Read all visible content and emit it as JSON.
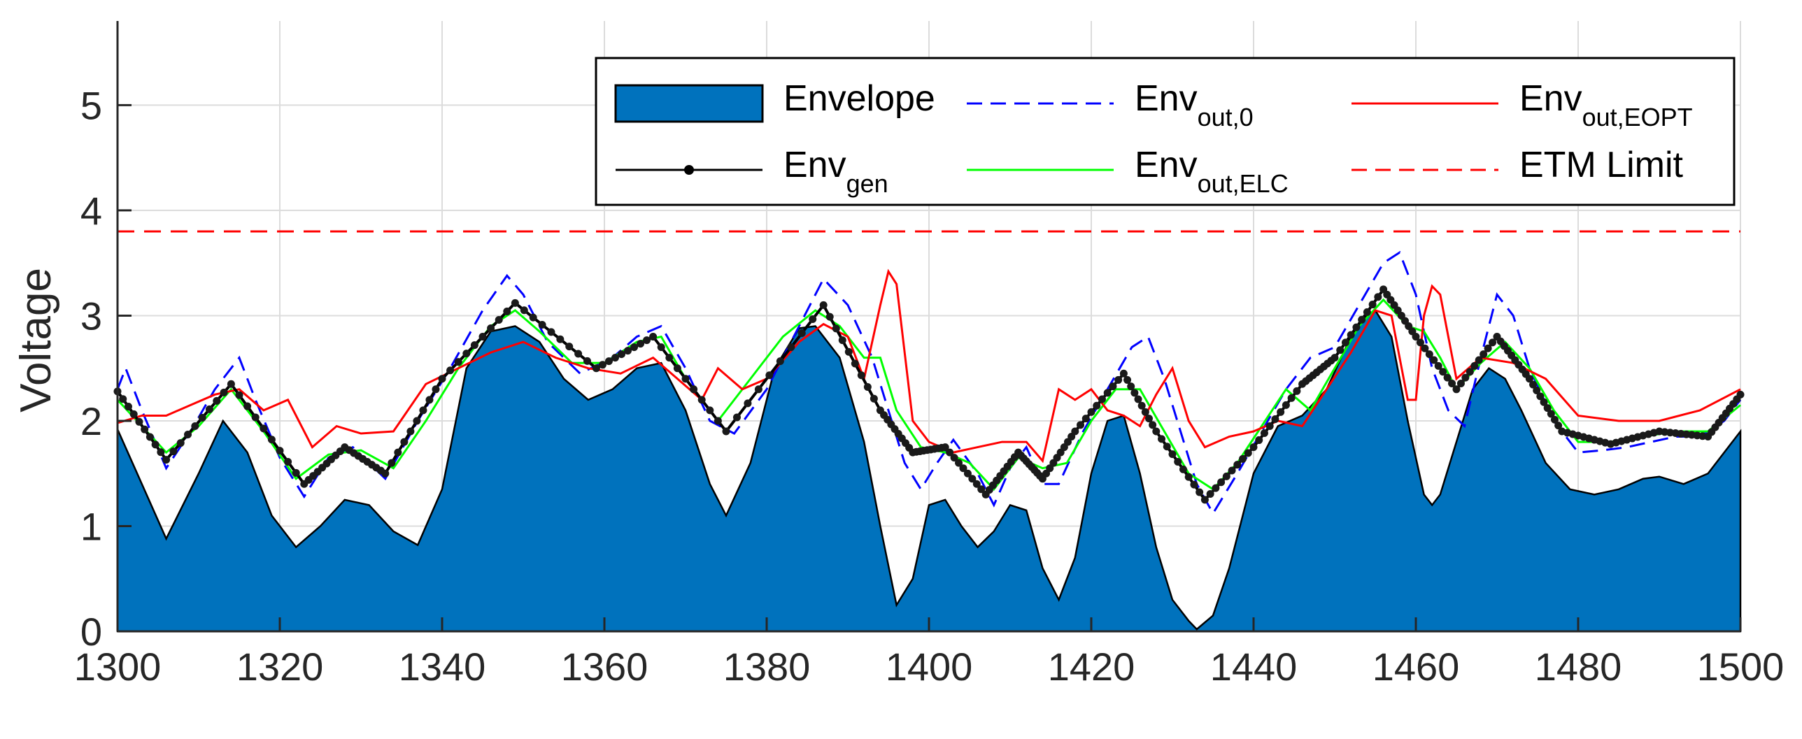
{
  "chart_data": {
    "type": "area",
    "xlabel": "",
    "ylabel": "Voltage",
    "xlim": [
      1300,
      1500
    ],
    "ylim": [
      0,
      5.8
    ],
    "xticks": [
      1300,
      1320,
      1340,
      1360,
      1380,
      1400,
      1420,
      1440,
      1460,
      1480,
      1500
    ],
    "yticks": [
      0,
      1,
      2,
      3,
      4,
      5
    ],
    "grid": true,
    "legend_placement": "top-right",
    "colors": {
      "envelope": "#0072BD",
      "env_gen": "#000000",
      "env_out_0": "#0000FF",
      "env_out_elc": "#00FF00",
      "env_out_eopt": "#FF0000",
      "etm_limit": "#FF0000"
    },
    "legend": [
      {
        "key": "envelope",
        "base": "Envelope",
        "sub": "",
        "style": "filled-box"
      },
      {
        "key": "env_out_0",
        "base": "Env",
        "sub": "out,0",
        "style": "dashed-line"
      },
      {
        "key": "env_out_eopt",
        "base": "Env",
        "sub": "out,EOPT",
        "style": "solid-line"
      },
      {
        "key": "env_gen",
        "base": "Env",
        "sub": "gen",
        "style": "line-dot"
      },
      {
        "key": "env_out_elc",
        "base": "Env",
        "sub": "out,ELC",
        "style": "solid-line"
      },
      {
        "key": "etm_limit",
        "base": "ETM Limit",
        "sub": "",
        "style": "dashed-line"
      }
    ],
    "series": [
      {
        "key": "envelope",
        "x": [
          1300,
          1303,
          1306,
          1310,
          1313,
          1316,
          1319,
          1322,
          1325,
          1328,
          1331,
          1334,
          1337,
          1340,
          1343,
          1346,
          1349,
          1352,
          1355,
          1358,
          1361,
          1364,
          1367,
          1370,
          1373,
          1375,
          1378,
          1381,
          1384,
          1386,
          1389,
          1392,
          1394,
          1396,
          1398,
          1400,
          1402,
          1404,
          1406,
          1408,
          1410,
          1412,
          1414,
          1416,
          1418,
          1420,
          1422,
          1424,
          1426,
          1428,
          1430,
          1432,
          1433,
          1435,
          1437,
          1440,
          1443,
          1446,
          1449,
          1452,
          1454,
          1455,
          1457,
          1459,
          1461,
          1462,
          1463,
          1465,
          1467,
          1469,
          1471,
          1473,
          1476,
          1479,
          1482,
          1485,
          1488,
          1490,
          1493,
          1496,
          1500
        ],
        "y": [
          1.92,
          1.4,
          0.88,
          1.5,
          2.0,
          1.7,
          1.1,
          0.8,
          1.0,
          1.25,
          1.2,
          0.95,
          0.82,
          1.35,
          2.5,
          2.85,
          2.9,
          2.75,
          2.4,
          2.2,
          2.3,
          2.5,
          2.55,
          2.1,
          1.4,
          1.1,
          1.6,
          2.5,
          2.88,
          2.9,
          2.6,
          1.8,
          1.0,
          0.25,
          0.5,
          1.2,
          1.25,
          1.0,
          0.8,
          0.95,
          1.2,
          1.15,
          0.6,
          0.3,
          0.7,
          1.5,
          2.0,
          2.05,
          1.5,
          0.8,
          0.3,
          0.1,
          0.02,
          0.15,
          0.6,
          1.5,
          1.95,
          2.05,
          2.3,
          2.8,
          3.0,
          3.05,
          2.8,
          2.0,
          1.3,
          1.2,
          1.3,
          1.8,
          2.3,
          2.5,
          2.4,
          2.1,
          1.6,
          1.35,
          1.3,
          1.35,
          1.45,
          1.47,
          1.4,
          1.5,
          1.9
        ]
      },
      {
        "key": "env_gen",
        "x": [
          1300,
          1306,
          1314,
          1323,
          1328,
          1333,
          1340,
          1349,
          1359,
          1366,
          1375,
          1387,
          1394,
          1398,
          1402,
          1407,
          1411,
          1414,
          1418,
          1424,
          1428,
          1434,
          1440,
          1446,
          1450,
          1456,
          1460,
          1465,
          1470,
          1474,
          1478,
          1484,
          1490,
          1496,
          1500
        ],
        "y": [
          2.28,
          1.63,
          2.35,
          1.4,
          1.75,
          1.5,
          2.4,
          3.12,
          2.5,
          2.8,
          1.9,
          3.1,
          2.1,
          1.7,
          1.75,
          1.3,
          1.7,
          1.45,
          1.9,
          2.45,
          1.9,
          1.25,
          1.75,
          2.35,
          2.6,
          3.25,
          2.8,
          2.3,
          2.8,
          2.4,
          1.9,
          1.78,
          1.9,
          1.85,
          2.25
        ]
      },
      {
        "key": "env_out_0",
        "x": [
          1300,
          1301,
          1303,
          1306,
          1309,
          1312,
          1315,
          1317,
          1320,
          1323,
          1326,
          1329,
          1333,
          1337,
          1341,
          1345,
          1348,
          1350,
          1353,
          1357,
          1361,
          1364,
          1367,
          1370,
          1373,
          1376,
          1380,
          1384,
          1387,
          1390,
          1393,
          1395,
          1397,
          1399,
          1401,
          1403,
          1406,
          1408,
          1410,
          1412,
          1414,
          1416,
          1419,
          1422,
          1425,
          1427,
          1429,
          1431,
          1433,
          1435,
          1438,
          1441,
          1444,
          1447,
          1450,
          1453,
          1456,
          1458,
          1460,
          1462,
          1464,
          1466,
          1468,
          1470,
          1472,
          1474,
          1477,
          1480,
          1483,
          1486,
          1489,
          1492,
          1495,
          1498,
          1500
        ],
        "y": [
          2.3,
          2.5,
          2.1,
          1.55,
          1.9,
          2.3,
          2.6,
          2.2,
          1.65,
          1.28,
          1.65,
          1.75,
          1.45,
          2.0,
          2.5,
          3.05,
          3.38,
          3.2,
          2.75,
          2.45,
          2.6,
          2.8,
          2.9,
          2.5,
          2.0,
          1.88,
          2.3,
          2.9,
          3.35,
          3.1,
          2.6,
          2.1,
          1.6,
          1.35,
          1.6,
          1.82,
          1.5,
          1.2,
          1.55,
          1.75,
          1.4,
          1.4,
          1.9,
          2.3,
          2.7,
          2.8,
          2.4,
          1.9,
          1.4,
          1.12,
          1.5,
          1.9,
          2.3,
          2.6,
          2.7,
          3.1,
          3.5,
          3.6,
          3.2,
          2.5,
          2.1,
          1.95,
          2.6,
          3.2,
          3.0,
          2.5,
          2.0,
          1.7,
          1.72,
          1.75,
          1.8,
          1.85,
          1.85,
          2.0,
          2.2
        ]
      },
      {
        "key": "env_out_elc",
        "x": [
          1300,
          1303,
          1306,
          1310,
          1314,
          1318,
          1322,
          1326,
          1330,
          1334,
          1338,
          1342,
          1346,
          1349,
          1352,
          1356,
          1360,
          1364,
          1367,
          1370,
          1374,
          1378,
          1382,
          1386,
          1389,
          1392,
          1394,
          1396,
          1399,
          1402,
          1405,
          1408,
          1411,
          1414,
          1417,
          1420,
          1423,
          1426,
          1429,
          1432,
          1435,
          1438,
          1441,
          1444,
          1447,
          1450,
          1453,
          1456,
          1459,
          1461,
          1463,
          1465,
          1468,
          1471,
          1474,
          1477,
          1480,
          1484,
          1488,
          1492,
          1496,
          1500
        ],
        "y": [
          2.2,
          1.95,
          1.7,
          1.95,
          2.3,
          1.9,
          1.45,
          1.68,
          1.72,
          1.55,
          2.0,
          2.5,
          2.9,
          3.05,
          2.85,
          2.55,
          2.55,
          2.75,
          2.8,
          2.4,
          2.0,
          2.4,
          2.8,
          3.05,
          2.9,
          2.6,
          2.6,
          2.1,
          1.75,
          1.7,
          1.6,
          1.35,
          1.65,
          1.55,
          1.6,
          2.0,
          2.3,
          2.3,
          1.9,
          1.5,
          1.35,
          1.6,
          1.95,
          2.3,
          2.1,
          2.5,
          2.9,
          3.15,
          2.9,
          2.85,
          2.6,
          2.3,
          2.55,
          2.75,
          2.5,
          2.1,
          1.8,
          1.8,
          1.85,
          1.9,
          1.9,
          2.15
        ]
      },
      {
        "key": "env_out_eopt",
        "x": [
          1300,
          1303,
          1306,
          1309,
          1312,
          1315,
          1318,
          1321,
          1324,
          1327,
          1330,
          1334,
          1338,
          1342,
          1346,
          1350,
          1354,
          1358,
          1362,
          1366,
          1369,
          1372,
          1374,
          1377,
          1380,
          1384,
          1387,
          1390,
          1392,
          1394,
          1395,
          1396,
          1398,
          1400,
          1403,
          1406,
          1409,
          1412,
          1414,
          1416,
          1418,
          1420,
          1422,
          1424,
          1426,
          1428,
          1430,
          1432,
          1434,
          1437,
          1440,
          1443,
          1446,
          1449,
          1452,
          1455,
          1457,
          1458,
          1459,
          1460,
          1461,
          1462,
          1463,
          1465,
          1468,
          1472,
          1476,
          1480,
          1485,
          1490,
          1495,
          1500
        ],
        "y": [
          1.98,
          2.05,
          2.05,
          2.15,
          2.25,
          2.3,
          2.1,
          2.2,
          1.75,
          1.95,
          1.88,
          1.9,
          2.35,
          2.5,
          2.65,
          2.75,
          2.6,
          2.5,
          2.45,
          2.6,
          2.4,
          2.2,
          2.5,
          2.3,
          2.4,
          2.75,
          2.92,
          2.8,
          2.4,
          3.1,
          3.42,
          3.3,
          2.0,
          1.8,
          1.7,
          1.75,
          1.8,
          1.8,
          1.62,
          2.3,
          2.2,
          2.3,
          2.1,
          2.05,
          1.95,
          2.25,
          2.5,
          2.0,
          1.75,
          1.85,
          1.9,
          2.0,
          1.95,
          2.3,
          2.65,
          3.05,
          3.0,
          2.6,
          2.2,
          2.2,
          3.0,
          3.28,
          3.2,
          2.4,
          2.6,
          2.55,
          2.4,
          2.05,
          2.0,
          2.0,
          2.1,
          2.3
        ]
      },
      {
        "key": "etm_limit",
        "x": [
          1300,
          1500
        ],
        "y": [
          3.8,
          3.8
        ]
      }
    ]
  }
}
